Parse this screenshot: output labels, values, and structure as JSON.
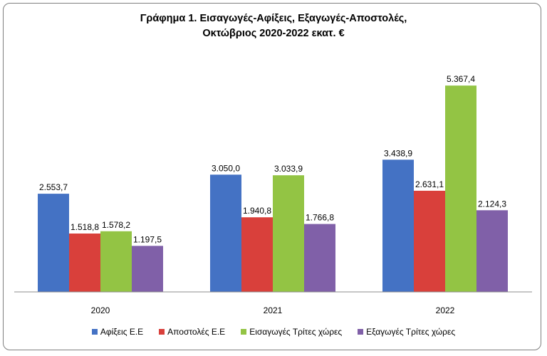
{
  "chart_data": {
    "type": "bar",
    "title_line1": "Γράφημα 1. Εισαγωγές-Αφίξεις, Εξαγωγές-Αποστολές,",
    "title_line2": "Οκτώβριος 2020-2022 εκατ. €",
    "categories": [
      "2020",
      "2021",
      "2022"
    ],
    "series": [
      {
        "name": "Αφίξεις Ε.Ε",
        "color": "#4472c4",
        "values": [
          2553.7,
          3050.0,
          3438.9
        ],
        "labels": [
          "2.553,7",
          "3.050,0",
          "3.438,9"
        ]
      },
      {
        "name": "Αποστολές  Ε.Ε",
        "color": "#d9403b",
        "values": [
          1518.8,
          1940.8,
          2631.1
        ],
        "labels": [
          "1.518,8",
          "1.940,8",
          "2.631,1"
        ]
      },
      {
        "name": "Εισαγωγές Τρίτες χώρες",
        "color": "#93c444",
        "values": [
          1578.2,
          3033.9,
          5367.4
        ],
        "labels": [
          "1.578,2",
          "3.033,9",
          "5.367,4"
        ]
      },
      {
        "name": "Εξαγωγές Τρίτες χώρες",
        "color": "#8060a8",
        "values": [
          1197.5,
          1766.8,
          2124.3
        ],
        "labels": [
          "1.197,5",
          "1.766,8",
          "2.124,3"
        ]
      }
    ],
    "ylim": [
      0,
      6000
    ],
    "grid": false,
    "legend": "bottom"
  }
}
